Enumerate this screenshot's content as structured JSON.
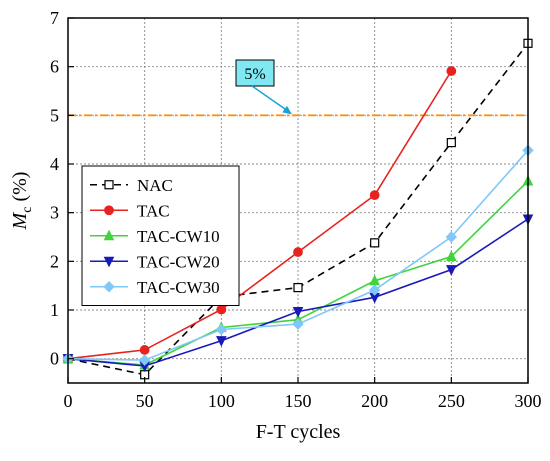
{
  "chart_data": {
    "type": "line",
    "xlabel": "F-T cycles",
    "ylabel_main": "M",
    "ylabel_sub": "c",
    "ylabel_unit": " (%)",
    "xlim": [
      0,
      300
    ],
    "ylim": [
      -0.5,
      7
    ],
    "xticks": [
      "0",
      "50",
      "100",
      "150",
      "200",
      "250",
      "300"
    ],
    "yticks": [
      "0",
      "1",
      "2",
      "3",
      "4",
      "5",
      "6",
      "7"
    ],
    "grid": true,
    "legend_position": "left",
    "series": [
      {
        "name": "NAC",
        "color": "#000000",
        "dash": "7,5",
        "marker": "square-open",
        "x": [
          0,
          50,
          100,
          150,
          200,
          250,
          300
        ],
        "y": [
          0,
          -0.33,
          1.27,
          1.46,
          2.38,
          4.44,
          6.48
        ]
      },
      {
        "name": "TAC",
        "color": "#e8231f",
        "dash": "",
        "marker": "circle",
        "x": [
          0,
          50,
          100,
          150,
          200,
          250
        ],
        "y": [
          0,
          0.18,
          1.01,
          2.19,
          3.36,
          5.91
        ]
      },
      {
        "name": "TAC-CW10",
        "color": "#3fd43b",
        "dash": "",
        "marker": "triangle-up",
        "x": [
          0,
          50,
          100,
          150,
          200,
          250,
          300
        ],
        "y": [
          0,
          -0.13,
          0.64,
          0.8,
          1.6,
          2.1,
          3.65
        ]
      },
      {
        "name": "TAC-CW20",
        "color": "#1a1ab8",
        "dash": "",
        "marker": "triangle-down",
        "x": [
          0,
          50,
          100,
          150,
          200,
          250,
          300
        ],
        "y": [
          0,
          -0.15,
          0.37,
          0.97,
          1.26,
          1.83,
          2.87
        ]
      },
      {
        "name": "TAC-CW30",
        "color": "#7fc8f8",
        "dash": "",
        "marker": "diamond",
        "x": [
          0,
          50,
          100,
          150,
          200,
          250,
          300
        ],
        "y": [
          0,
          -0.03,
          0.6,
          0.71,
          1.41,
          2.5,
          4.28
        ]
      }
    ],
    "threshold": {
      "y": 5,
      "color": "#f7941d",
      "label": "5%",
      "label_fill": "#7fe8f2",
      "arrow_color": "#19a0d8"
    }
  }
}
